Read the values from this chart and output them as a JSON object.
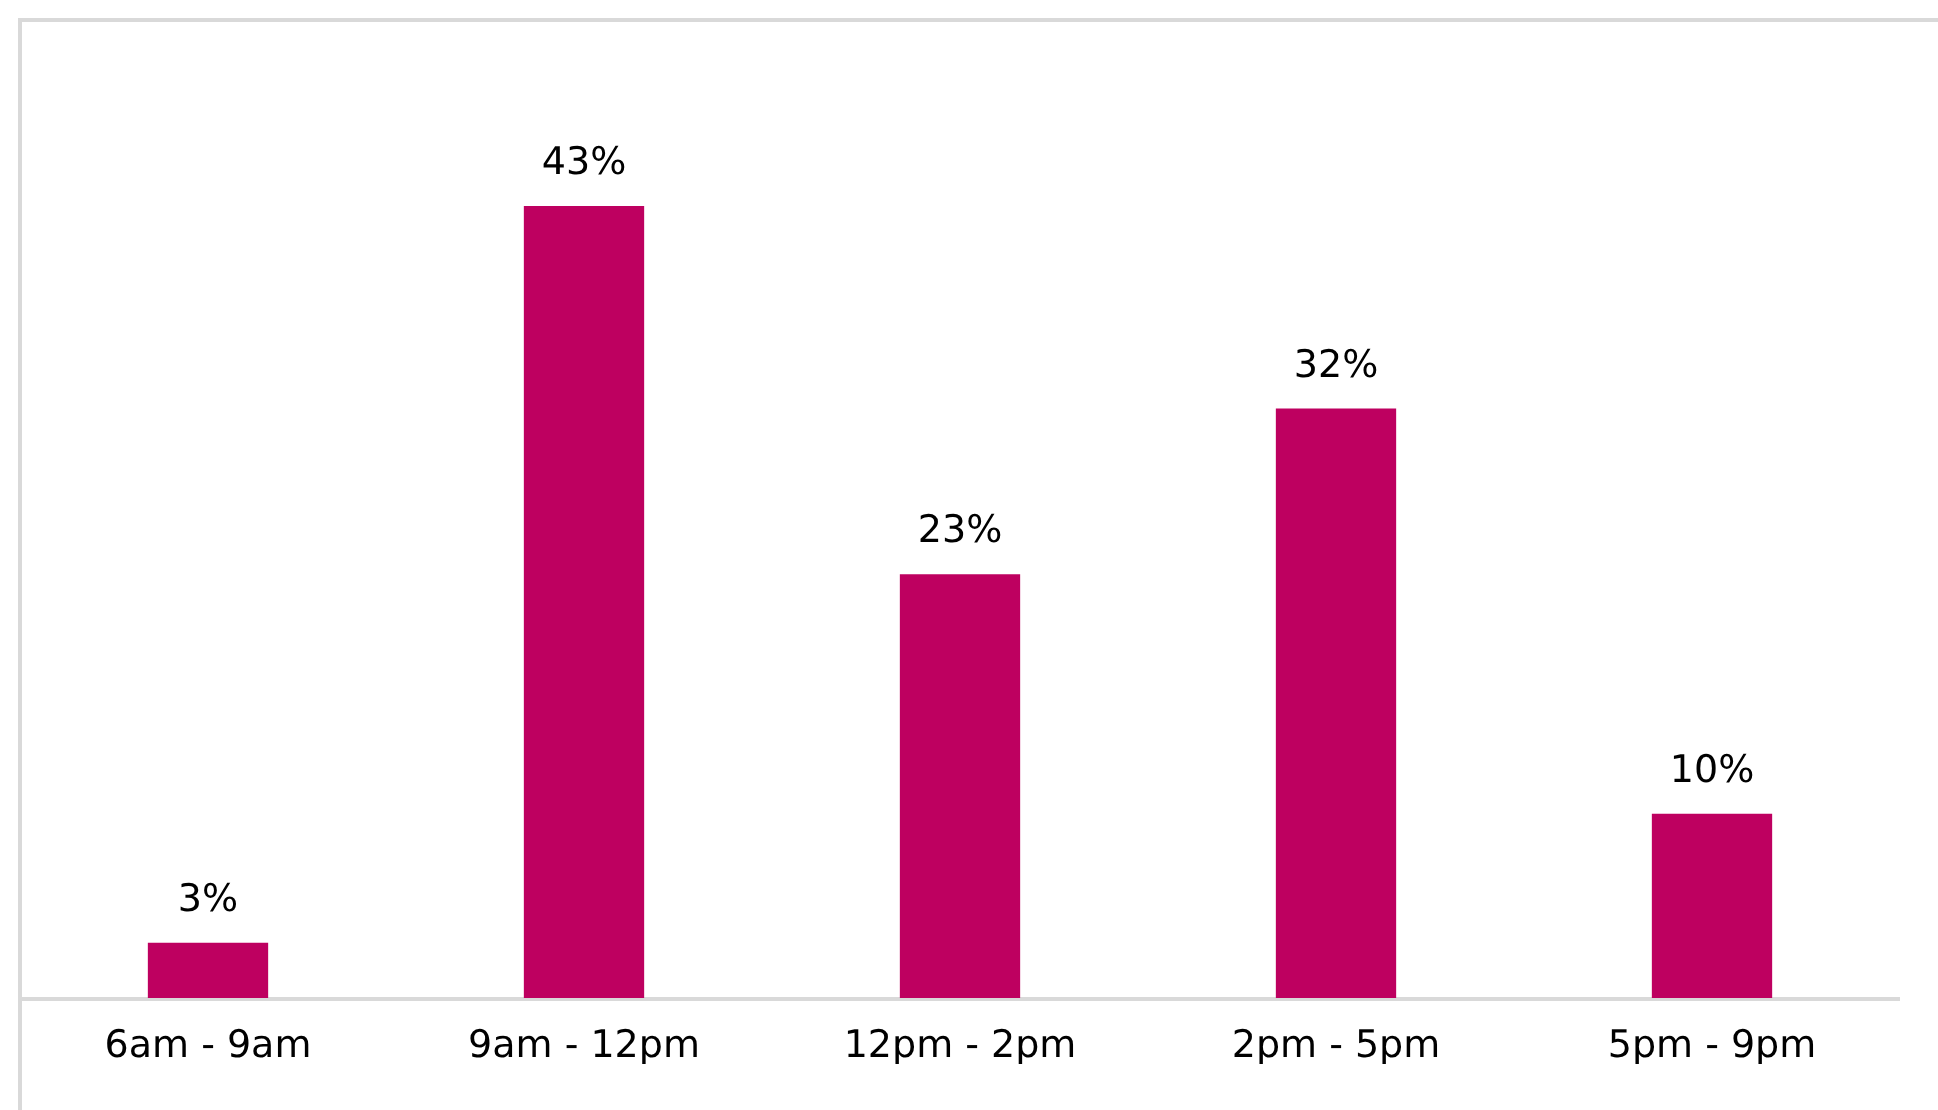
{
  "chart_data": {
    "type": "bar",
    "categories": [
      "6am - 9am",
      "9am - 12pm",
      "12pm - 2pm",
      "2pm - 5pm",
      "5pm - 9pm"
    ],
    "values": [
      3,
      43,
      23,
      32,
      10
    ],
    "value_labels": [
      "3%",
      "43%",
      "23%",
      "32%",
      "10%"
    ],
    "color": "#be0060"
  }
}
